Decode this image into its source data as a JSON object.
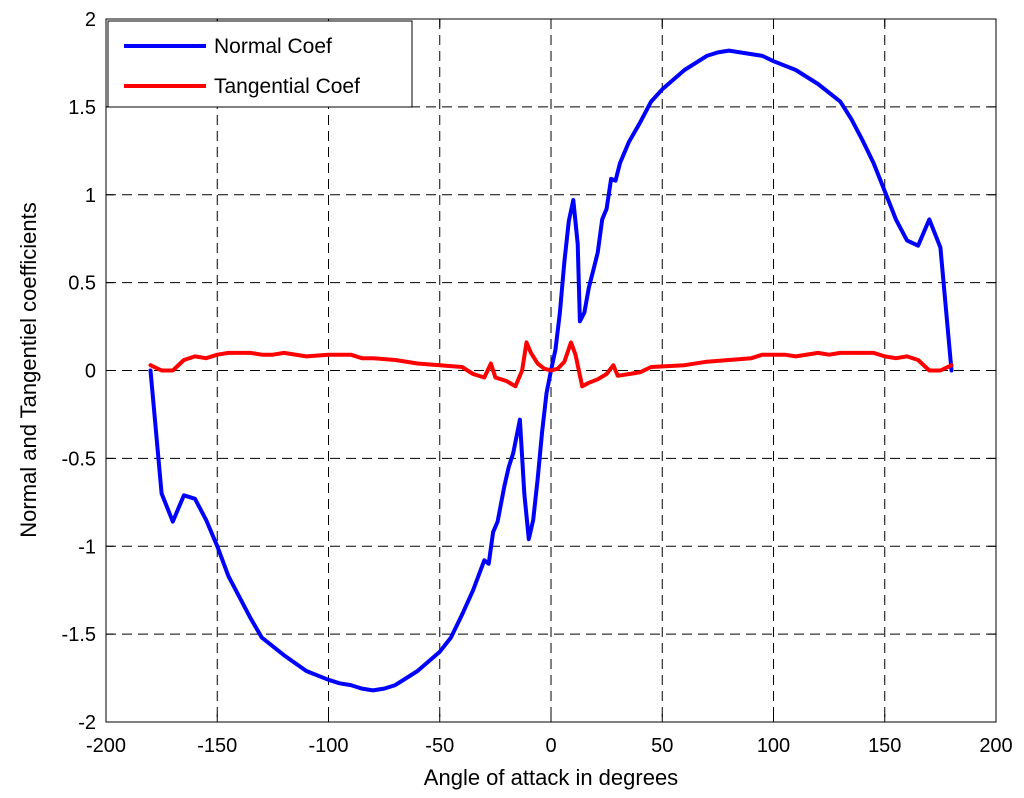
{
  "chart_data": {
    "type": "line",
    "title": "",
    "xlabel": "Angle of attack in degrees",
    "ylabel": "Normal and Tangentiel coefficients",
    "xlim": [
      -200,
      200
    ],
    "ylim": [
      -2,
      2
    ],
    "x_ticks": [
      -200,
      -150,
      -100,
      -50,
      0,
      50,
      100,
      150,
      200
    ],
    "y_ticks": [
      -2,
      -1.5,
      -1,
      -0.5,
      0,
      0.5,
      1,
      1.5,
      2
    ],
    "grid": true,
    "legend_position": "top-left",
    "series": [
      {
        "name": "Normal Coef",
        "color": "#0000ff",
        "points": [
          [
            -180,
            0.0
          ],
          [
            -175,
            -0.7
          ],
          [
            -170,
            -0.86
          ],
          [
            -165,
            -0.71
          ],
          [
            -160,
            -0.73
          ],
          [
            -155,
            -0.85
          ],
          [
            -150,
            -1.0
          ],
          [
            -145,
            -1.17
          ],
          [
            -140,
            -1.29
          ],
          [
            -135,
            -1.41
          ],
          [
            -130,
            -1.52
          ],
          [
            -120,
            -1.62
          ],
          [
            -110,
            -1.71
          ],
          [
            -100,
            -1.76
          ],
          [
            -95,
            -1.78
          ],
          [
            -90,
            -1.79
          ],
          [
            -85,
            -1.81
          ],
          [
            -80,
            -1.82
          ],
          [
            -75,
            -1.81
          ],
          [
            -70,
            -1.79
          ],
          [
            -60,
            -1.71
          ],
          [
            -50,
            -1.6
          ],
          [
            -45,
            -1.52
          ],
          [
            -40,
            -1.39
          ],
          [
            -35,
            -1.25
          ],
          [
            -30,
            -1.08
          ],
          [
            -28,
            -1.1
          ],
          [
            -26,
            -0.92
          ],
          [
            -24,
            -0.86
          ],
          [
            -21,
            -0.66
          ],
          [
            -19,
            -0.55
          ],
          [
            -17,
            -0.47
          ],
          [
            -14,
            -0.28
          ],
          [
            -12,
            -0.7
          ],
          [
            -10,
            -0.96
          ],
          [
            -8,
            -0.85
          ],
          [
            -6,
            -0.62
          ],
          [
            -4,
            -0.35
          ],
          [
            -2,
            -0.13
          ],
          [
            0,
            0.0
          ],
          [
            2,
            0.12
          ],
          [
            4,
            0.33
          ],
          [
            6,
            0.62
          ],
          [
            8,
            0.85
          ],
          [
            10,
            0.97
          ],
          [
            12,
            0.72
          ],
          [
            13,
            0.28
          ],
          [
            15,
            0.33
          ],
          [
            17,
            0.47
          ],
          [
            19,
            0.57
          ],
          [
            21,
            0.67
          ],
          [
            23,
            0.86
          ],
          [
            25,
            0.92
          ],
          [
            27,
            1.09
          ],
          [
            29,
            1.08
          ],
          [
            31,
            1.18
          ],
          [
            35,
            1.3
          ],
          [
            40,
            1.41
          ],
          [
            45,
            1.53
          ],
          [
            50,
            1.6
          ],
          [
            60,
            1.71
          ],
          [
            70,
            1.79
          ],
          [
            75,
            1.81
          ],
          [
            80,
            1.82
          ],
          [
            85,
            1.81
          ],
          [
            90,
            1.8
          ],
          [
            95,
            1.79
          ],
          [
            100,
            1.76
          ],
          [
            110,
            1.71
          ],
          [
            120,
            1.63
          ],
          [
            130,
            1.53
          ],
          [
            135,
            1.43
          ],
          [
            140,
            1.31
          ],
          [
            145,
            1.18
          ],
          [
            150,
            1.02
          ],
          [
            155,
            0.86
          ],
          [
            160,
            0.74
          ],
          [
            165,
            0.71
          ],
          [
            170,
            0.86
          ],
          [
            175,
            0.7
          ],
          [
            180,
            0.0
          ]
        ]
      },
      {
        "name": "Tangential Coef",
        "color": "#ff0000",
        "points": [
          [
            -180,
            0.03
          ],
          [
            -175,
            0.0
          ],
          [
            -170,
            0.0
          ],
          [
            -165,
            0.06
          ],
          [
            -160,
            0.08
          ],
          [
            -155,
            0.07
          ],
          [
            -150,
            0.09
          ],
          [
            -145,
            0.1
          ],
          [
            -140,
            0.1
          ],
          [
            -135,
            0.1
          ],
          [
            -130,
            0.09
          ],
          [
            -125,
            0.09
          ],
          [
            -120,
            0.1
          ],
          [
            -110,
            0.08
          ],
          [
            -100,
            0.09
          ],
          [
            -90,
            0.09
          ],
          [
            -85,
            0.07
          ],
          [
            -80,
            0.07
          ],
          [
            -70,
            0.06
          ],
          [
            -60,
            0.04
          ],
          [
            -50,
            0.03
          ],
          [
            -40,
            0.02
          ],
          [
            -35,
            -0.02
          ],
          [
            -30,
            -0.04
          ],
          [
            -27,
            0.04
          ],
          [
            -25,
            -0.04
          ],
          [
            -20,
            -0.06
          ],
          [
            -16,
            -0.09
          ],
          [
            -13,
            0.0
          ],
          [
            -11,
            0.16
          ],
          [
            -9,
            0.1
          ],
          [
            -6,
            0.04
          ],
          [
            -3,
            0.01
          ],
          [
            0,
            0.0
          ],
          [
            3,
            0.01
          ],
          [
            6,
            0.05
          ],
          [
            9,
            0.16
          ],
          [
            11,
            0.09
          ],
          [
            14,
            -0.09
          ],
          [
            17,
            -0.07
          ],
          [
            21,
            -0.05
          ],
          [
            25,
            -0.02
          ],
          [
            28,
            0.03
          ],
          [
            30,
            -0.03
          ],
          [
            40,
            -0.01
          ],
          [
            45,
            0.02
          ],
          [
            60,
            0.03
          ],
          [
            70,
            0.05
          ],
          [
            80,
            0.06
          ],
          [
            90,
            0.07
          ],
          [
            95,
            0.09
          ],
          [
            105,
            0.09
          ],
          [
            110,
            0.08
          ],
          [
            120,
            0.1
          ],
          [
            125,
            0.09
          ],
          [
            130,
            0.1
          ],
          [
            135,
            0.1
          ],
          [
            145,
            0.1
          ],
          [
            150,
            0.08
          ],
          [
            155,
            0.07
          ],
          [
            160,
            0.08
          ],
          [
            165,
            0.06
          ],
          [
            170,
            0.0
          ],
          [
            175,
            0.0
          ],
          [
            180,
            0.03
          ]
        ]
      }
    ]
  }
}
